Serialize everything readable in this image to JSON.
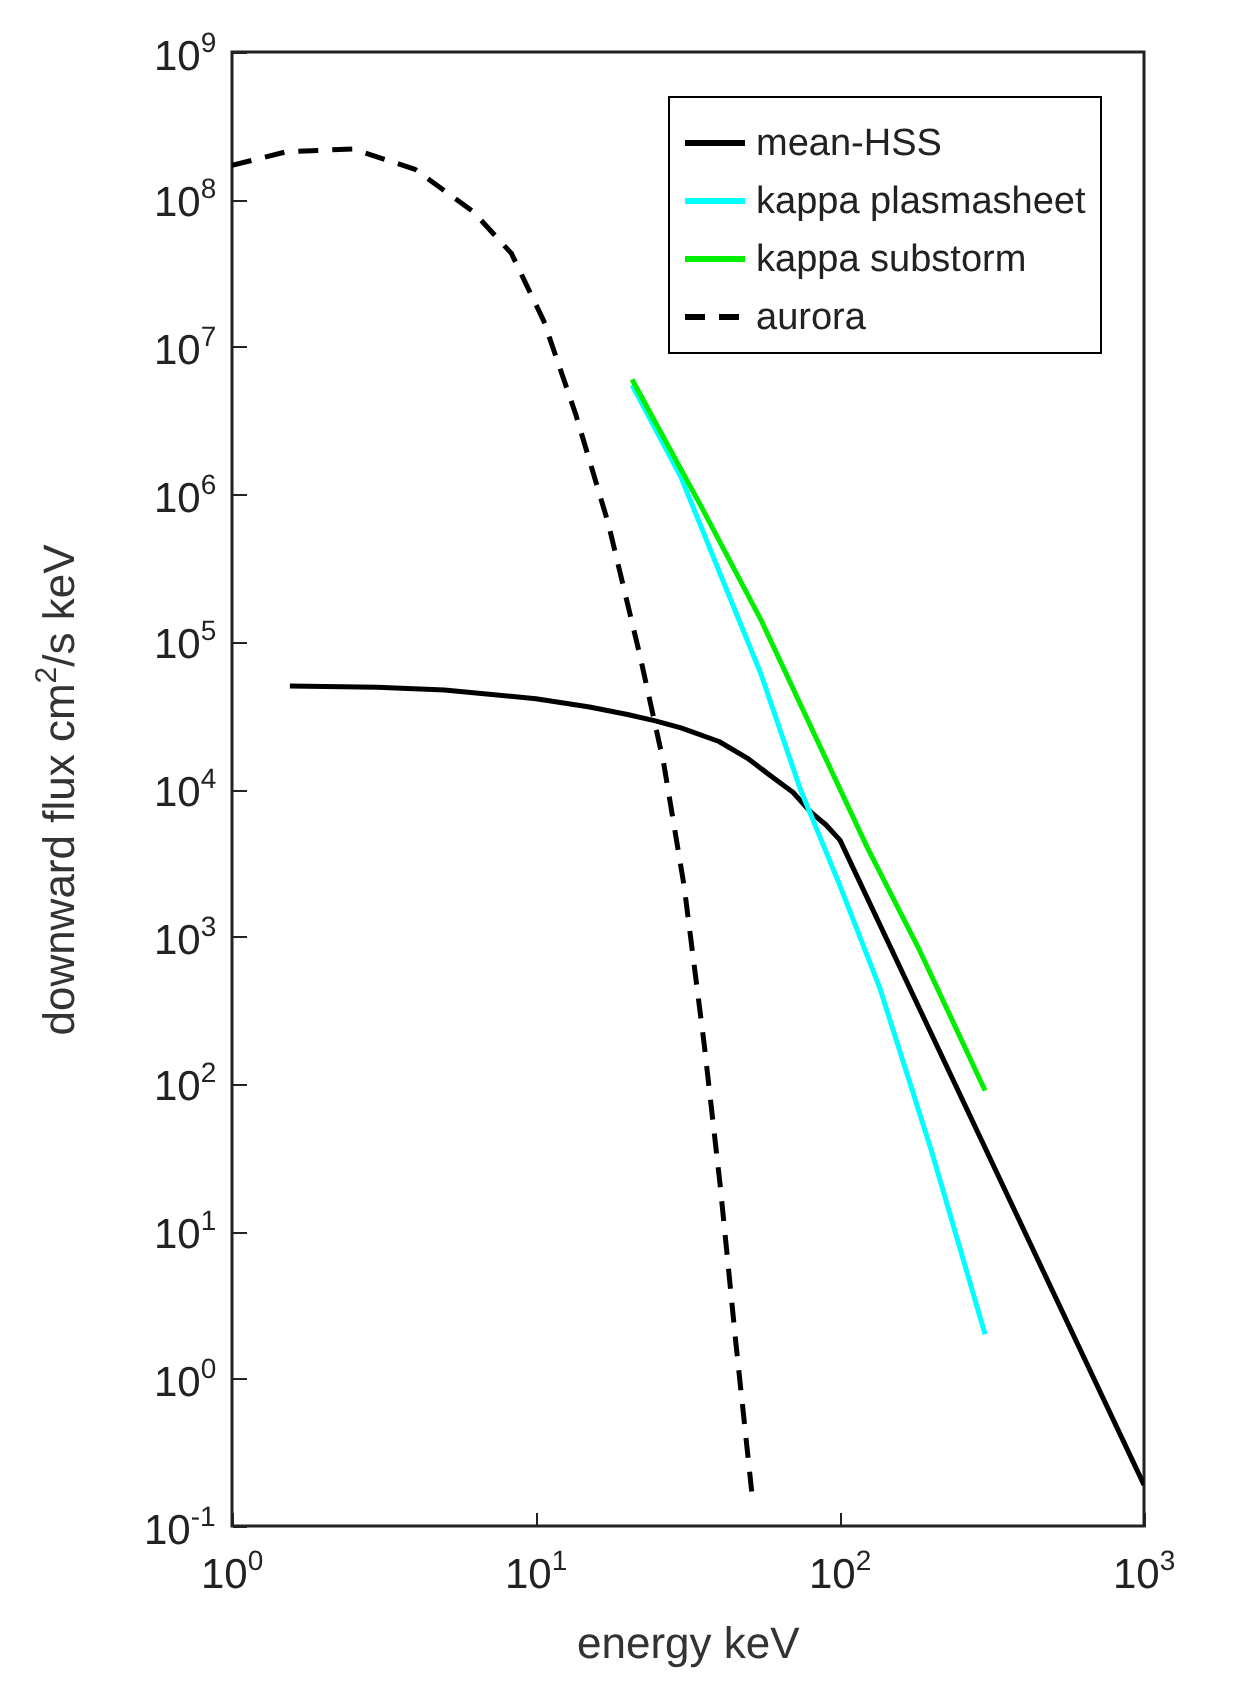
{
  "chart_data": {
    "type": "line",
    "xlabel": "energy keV",
    "ylabel": "downward flux cm$^{2}$/s keV",
    "log": "xy",
    "grid": false,
    "legend": "top right",
    "xlim": [
      1,
      1000
    ],
    "ylim": [
      0.1,
      1000000000
    ],
    "xticks": [
      {
        "value": 1,
        "label": "10$^{0}$"
      },
      {
        "value": 10,
        "label": "10$^{1}$"
      },
      {
        "value": 100,
        "label": "10$^{2}$"
      },
      {
        "value": 1000,
        "label": "10$^{3}$"
      }
    ],
    "yticks": [
      {
        "value": 0.1,
        "label": "10$^{-1}$"
      },
      {
        "value": 1,
        "label": "10$^{0}$"
      },
      {
        "value": 10,
        "label": "10$^{1}$"
      },
      {
        "value": 100,
        "label": "10$^{2}$"
      },
      {
        "value": 1000,
        "label": "10$^{3}$"
      },
      {
        "value": 10000,
        "label": "10$^{4}$"
      },
      {
        "value": 100000,
        "label": "10$^{5}$"
      },
      {
        "value": 1000000,
        "label": "10$^{6}$"
      },
      {
        "value": 10000000,
        "label": "10$^{7}$"
      },
      {
        "value": 100000000,
        "label": "10$^{8}$"
      },
      {
        "value": 1000000000,
        "label": "10$^{9}$"
      }
    ],
    "series": [
      {
        "name": "mean-HSS",
        "color": "#000000",
        "line_style": "solid",
        "x": [
          1.55,
          3,
          5,
          10,
          15,
          20,
          24.7,
          30,
          40,
          50,
          60,
          70,
          80,
          90,
          100,
          1000
        ],
        "values": [
          50000,
          49000,
          47000,
          41000,
          36000,
          32000,
          29000,
          26000,
          21000,
          16000,
          12000,
          9500,
          7000,
          5700,
          4500,
          0.19
        ]
      },
      {
        "name": "kappa plasmasheet",
        "color": "#00ffff",
        "line_style": "solid",
        "x": [
          20.7,
          30,
          40.3,
          55,
          74,
          100,
          135,
          200,
          300
        ],
        "values": [
          5500000,
          1300000,
          290000,
          60000,
          10000,
          2200,
          450,
          35,
          2
        ]
      },
      {
        "name": "kappa substorm",
        "color": "#00ee00",
        "line_style": "solid",
        "x": [
          20.7,
          35,
          55,
          123,
          183,
          300
        ],
        "values": [
          6000000,
          820000,
          140000,
          4000,
          800,
          90
        ]
      },
      {
        "name": "aurora",
        "color": "#000000",
        "line_style": "dashed",
        "x": [
          1,
          1.5,
          2.5,
          4,
          6.2,
          8.3,
          10.6,
          13.5,
          17.3,
          21.9,
          26.3,
          30.7,
          35.7,
          40.4,
          45.5,
          51.5
        ],
        "values": [
          170000000,
          210000000,
          220000000,
          160000000,
          83000000,
          43000000,
          15000000,
          3500000,
          630000,
          83000,
          15000,
          2200,
          190,
          20,
          1.7,
          0.155
        ]
      }
    ]
  }
}
